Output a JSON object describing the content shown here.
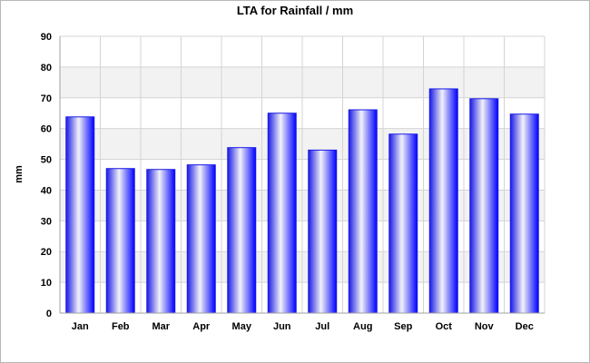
{
  "chart_data": {
    "type": "bar",
    "title": "LTA for Rainfall / mm",
    "xlabel": "",
    "ylabel": "mm",
    "categories": [
      "Jan",
      "Feb",
      "Mar",
      "Apr",
      "May",
      "Jun",
      "Jul",
      "Aug",
      "Sep",
      "Oct",
      "Nov",
      "Dec"
    ],
    "values": [
      63.8,
      47.0,
      46.7,
      48.2,
      53.8,
      65.0,
      53.0,
      66.1,
      58.2,
      72.9,
      69.7,
      64.7
    ],
    "ylim": [
      0,
      90
    ],
    "yticks": [
      "0",
      "10",
      "20",
      "30",
      "40",
      "50",
      "60",
      "70",
      "80",
      "90"
    ],
    "grid": true,
    "legend": "none",
    "colors": {
      "bar_edge": "#1a1ae6",
      "bar_center": "#f2f2f8",
      "bar_side": "#0000ff",
      "band": "#f2f2f2",
      "gridline": "#d4d4d4",
      "axis": "#a0a0a0"
    }
  }
}
